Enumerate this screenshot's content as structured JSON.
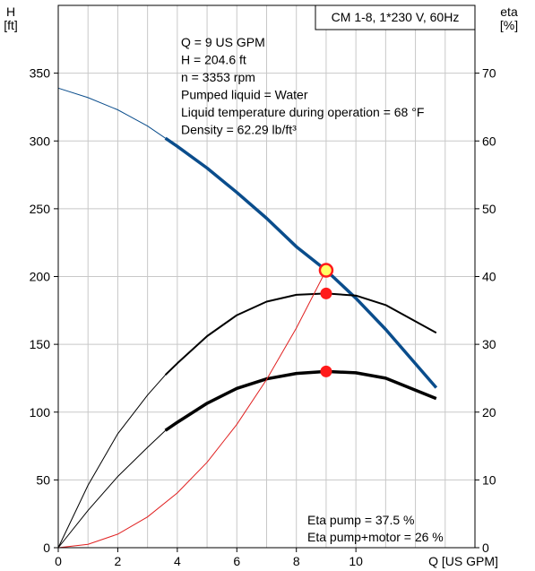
{
  "chart_data": {
    "type": "line",
    "title": "CM 1-8, 1*230 V, 60Hz",
    "xlabel": "Q [US GPM]",
    "ylabel_left": [
      "H",
      "[ft]"
    ],
    "ylabel_right": [
      "eta",
      "[%]"
    ],
    "xlim": [
      0,
      14
    ],
    "ylim_left": [
      0,
      400
    ],
    "ylim_right": [
      0,
      80
    ],
    "x_ticks": [
      0,
      2,
      4,
      6,
      8,
      10
    ],
    "y_left_ticks": [
      0,
      50,
      100,
      150,
      200,
      250,
      300,
      350
    ],
    "y_right_ticks": [
      0,
      10,
      20,
      30,
      40,
      50,
      60,
      70
    ],
    "grid": true,
    "info_lines": [
      "Q = 9 US GPM",
      "H = 204.6 ft",
      "n = 3353 rpm",
      "Pumped liquid = Water",
      "Liquid temperature during operation = 68 °F",
      "Density = 62.29 lb/ft³"
    ],
    "eta_lines": [
      "Eta pump = 37.5 %",
      "Eta pump+motor = 26 %"
    ],
    "colors": {
      "head_curve": "#0a4d8c",
      "eta_curves": "#000000",
      "system_curve": "#e02020",
      "point_fill": "#ff1a1a",
      "duty_fill": "#ffff66",
      "grid": "#c8c8c8"
    },
    "series": [
      {
        "key": "head",
        "axis": "left",
        "x": [
          0,
          1,
          2,
          3,
          3.6,
          4,
          5,
          6,
          7,
          8,
          9,
          10,
          11,
          12.7
        ],
        "y": [
          339,
          332,
          323,
          311,
          302,
          296,
          280,
          262,
          243,
          222,
          204.6,
          184,
          161,
          118
        ],
        "bold_from": 3.6
      },
      {
        "key": "eta_pump",
        "axis": "right",
        "x": [
          0,
          1,
          2,
          3,
          3.6,
          4,
          5,
          6,
          7,
          8,
          9,
          10,
          11,
          12.7
        ],
        "y": [
          0,
          9.2,
          16.8,
          22.5,
          25.5,
          27.2,
          31.2,
          34.3,
          36.3,
          37.3,
          37.5,
          37.2,
          35.8,
          31.7
        ],
        "bold_from": 3.6
      },
      {
        "key": "eta_pump_motor",
        "axis": "right",
        "x": [
          0,
          1,
          2,
          3,
          3.6,
          4,
          5,
          6,
          7,
          8,
          9,
          10,
          11,
          12.7
        ],
        "y": [
          0,
          5.5,
          10.5,
          14.8,
          17.3,
          18.5,
          21.3,
          23.5,
          24.9,
          25.7,
          26,
          25.8,
          25,
          22
        ],
        "bold_from": 3.6
      },
      {
        "key": "system",
        "axis": "left",
        "x": [
          0,
          1,
          2,
          3,
          4,
          5,
          6,
          7,
          8,
          9
        ],
        "y": [
          0,
          2.5,
          10,
          22.7,
          40.4,
          63,
          91,
          124,
          162,
          204.6
        ]
      }
    ],
    "points": [
      {
        "x": 9,
        "y": 204.6,
        "axis": "left",
        "kind": "duty"
      },
      {
        "x": 9,
        "y": 37.5,
        "axis": "right",
        "kind": "eta"
      },
      {
        "x": 9,
        "y": 26,
        "axis": "right",
        "kind": "eta"
      }
    ]
  }
}
